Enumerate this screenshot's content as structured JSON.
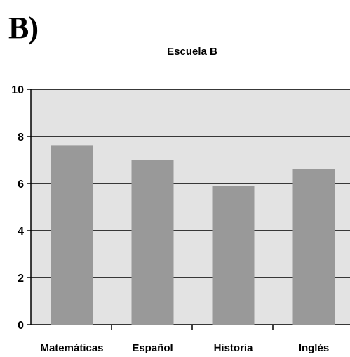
{
  "panel_label": "B)",
  "chart_data": {
    "type": "bar",
    "title": "Escuela B",
    "categories": [
      "Matemáticas",
      "Español",
      "Historia",
      "Inglés"
    ],
    "values": [
      7.6,
      7.0,
      5.9,
      6.6
    ],
    "ylim": [
      0,
      10
    ],
    "yticks": [
      0,
      2,
      4,
      6,
      8,
      10
    ],
    "xlabel": "",
    "ylabel": "",
    "grid": true,
    "legend": "none",
    "colors": {
      "bar": "#999999",
      "plot_background": "#e3e3e3",
      "gridline": "#000000",
      "text": "#000000"
    }
  }
}
